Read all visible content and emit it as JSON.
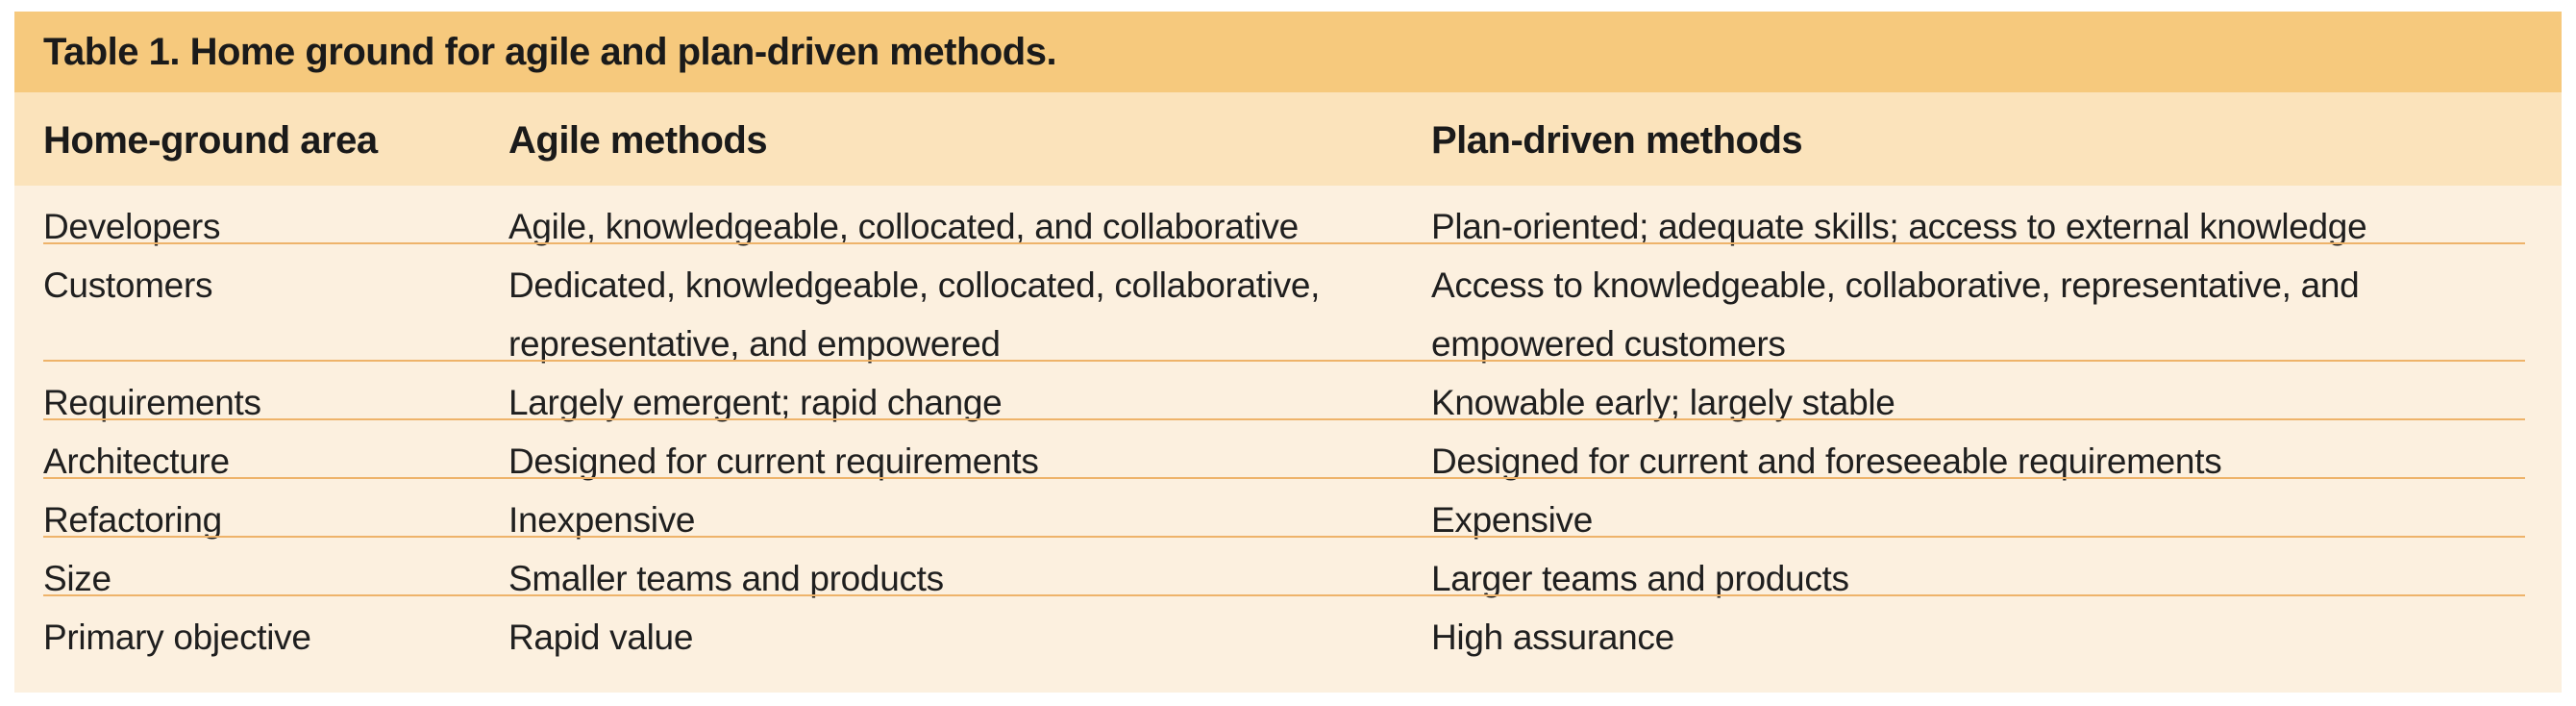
{
  "table": {
    "caption": "Table 1. Home ground for agile and plan-driven methods.",
    "headers": [
      "Home-ground area",
      "Agile methods",
      "Plan-driven methods"
    ],
    "rows": [
      [
        "Developers",
        "Agile, knowledgeable, collocated, and collaborative",
        "Plan-oriented; adequate skills; access to external knowledge"
      ],
      [
        "Customers",
        "Dedicated, knowledgeable, collocated, collaborative, representative, and empowered",
        "Access to knowledgeable, collaborative, representative, and empowered customers"
      ],
      [
        "Requirements",
        "Largely emergent; rapid change",
        "Knowable early; largely stable"
      ],
      [
        "Architecture",
        "Designed for current requirements",
        "Designed for current and foreseeable requirements"
      ],
      [
        "Refactoring",
        "Inexpensive",
        "Expensive"
      ],
      [
        "Size",
        "Smaller teams and products",
        "Larger teams and products"
      ],
      [
        "Primary objective",
        "Rapid value",
        "High assurance"
      ]
    ]
  },
  "colors": {
    "caption_bg": "#f6c97d",
    "header_bg": "#fbe3bb",
    "body_bg": "#fcf0df",
    "rule": "#eeb36a"
  }
}
